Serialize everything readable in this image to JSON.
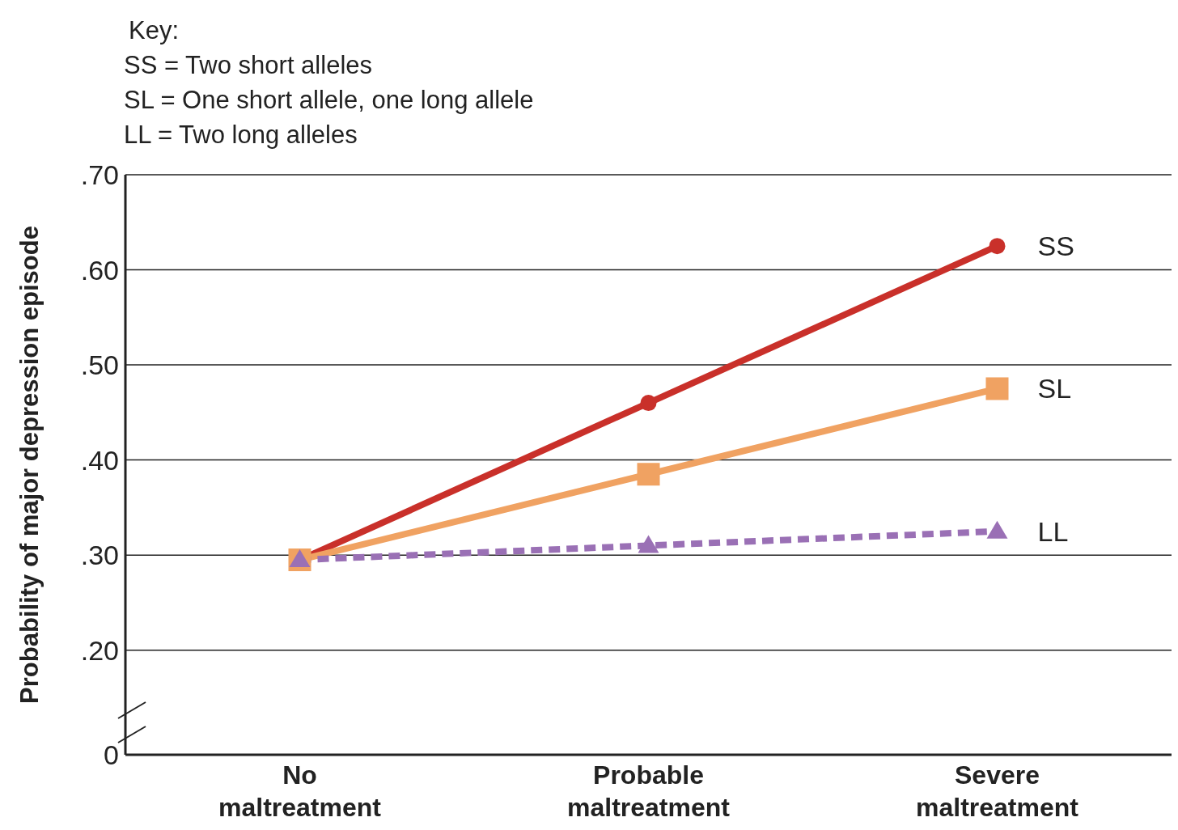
{
  "chart_data": {
    "type": "line",
    "ylabel": "Probability of major depression episode",
    "categories": [
      "No maltreatment",
      "Probable maltreatment",
      "Severe maltreatment"
    ],
    "series": [
      {
        "name": "SS",
        "color": "#c9302a",
        "values": [
          0.295,
          0.46,
          0.625
        ],
        "marker": "circle",
        "line_style": "solid"
      },
      {
        "name": "SL",
        "color": "#f0a262",
        "values": [
          0.295,
          0.385,
          0.475
        ],
        "marker": "square",
        "line_style": "solid"
      },
      {
        "name": "LL",
        "color": "#9a70b5",
        "values": [
          0.295,
          0.31,
          0.325
        ],
        "marker": "triangle",
        "line_style": "dashed"
      }
    ],
    "ylim": [
      0.09,
      0.7
    ],
    "yticks": [
      {
        "value": 0.09,
        "label": "0"
      },
      {
        "value": 0.2,
        "label": ".20"
      },
      {
        "value": 0.3,
        "label": ".30"
      },
      {
        "value": 0.4,
        "label": ".40"
      },
      {
        "value": 0.5,
        "label": ".50"
      },
      {
        "value": 0.6,
        "label": ".60"
      },
      {
        "value": 0.7,
        "label": ".70"
      }
    ],
    "grid": "y",
    "legend": false,
    "annotations": [
      "Key:",
      "SS = Two short alleles",
      "SL = One short allele, one long allele",
      "LL = Two long alleles"
    ]
  }
}
